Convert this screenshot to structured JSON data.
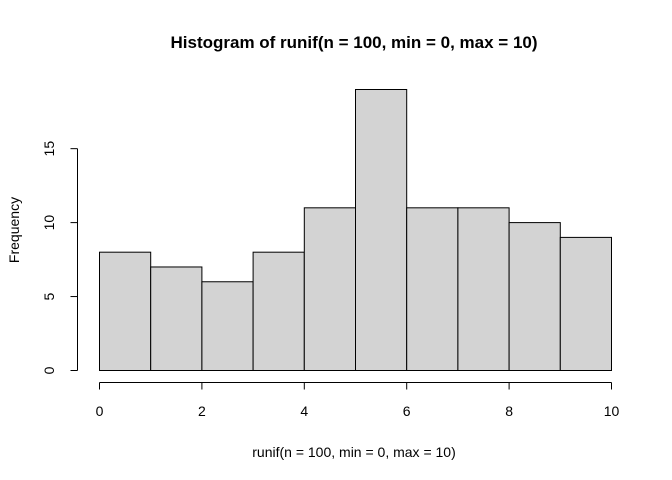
{
  "chart_data": {
    "type": "bar",
    "title": "Histogram of runif(n = 100, min = 0, max = 10)",
    "xlabel": "runif(n = 100, min = 0, max = 10)",
    "ylabel": "Frequency",
    "bins": [
      {
        "x0": 0,
        "x1": 1,
        "count": 8
      },
      {
        "x0": 1,
        "x1": 2,
        "count": 7
      },
      {
        "x0": 2,
        "x1": 3,
        "count": 6
      },
      {
        "x0": 3,
        "x1": 4,
        "count": 8
      },
      {
        "x0": 4,
        "x1": 5,
        "count": 11
      },
      {
        "x0": 5,
        "x1": 6,
        "count": 19
      },
      {
        "x0": 6,
        "x1": 7,
        "count": 11
      },
      {
        "x0": 7,
        "x1": 8,
        "count": 11
      },
      {
        "x0": 8,
        "x1": 9,
        "count": 10
      },
      {
        "x0": 9,
        "x1": 10,
        "count": 9
      }
    ],
    "xlim": [
      0,
      10
    ],
    "ylim": [
      0,
      19
    ],
    "x_ticks": [
      "0",
      "2",
      "4",
      "6",
      "8",
      "10"
    ],
    "y_ticks": [
      "0",
      "5",
      "10",
      "15"
    ],
    "grid": false,
    "bar_color": "#d3d3d3",
    "edge_color": "#000000"
  }
}
